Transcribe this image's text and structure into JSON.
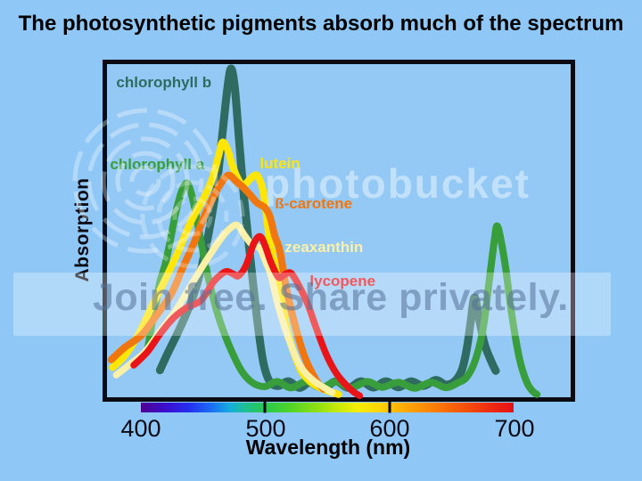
{
  "title": "The photosynthetic pigments absorb much of the spectrum",
  "watermark": {
    "brand": "photobucket",
    "tagline": "Join free. Share privately."
  },
  "colors": {
    "background": "#8FC7F7",
    "frame_border": "#0B0B14",
    "title_text": "#000000",
    "axis_text": "#0A0A14"
  },
  "chart_data": {
    "type": "line",
    "title": "The photosynthetic pigments absorb much of the spectrum",
    "xlabel": "Wavelength (nm)",
    "ylabel": "Absorption",
    "x_ticks": [
      400,
      500,
      600,
      700
    ],
    "x_tick_labels": [
      "400",
      "500",
      "600",
      "700"
    ],
    "xlim": [
      373,
      720
    ],
    "ylim": [
      0,
      1.05
    ],
    "grid": false,
    "legend_position": "inline curve labels",
    "series": [
      {
        "name": "chlorophyll b",
        "color": "#2F6B60",
        "label_anchor": [
          381,
          0.956
        ],
        "points": [
          [
            416,
            0.08
          ],
          [
            422,
            0.13
          ],
          [
            431,
            0.2
          ],
          [
            438,
            0.26
          ],
          [
            443,
            0.31
          ],
          [
            447,
            0.36
          ],
          [
            452,
            0.44
          ],
          [
            457,
            0.54
          ],
          [
            462,
            0.66
          ],
          [
            466,
            0.8
          ],
          [
            470,
            0.94
          ],
          [
            473,
            1.0
          ],
          [
            476,
            0.94
          ],
          [
            479,
            0.8
          ],
          [
            483,
            0.62
          ],
          [
            487,
            0.47
          ],
          [
            491,
            0.33
          ],
          [
            495,
            0.2
          ],
          [
            499,
            0.1
          ],
          [
            504,
            0.045
          ],
          [
            511,
            0.032
          ],
          [
            519,
            0.046
          ],
          [
            528,
            0.026
          ],
          [
            537,
            0.046
          ],
          [
            547,
            0.026
          ],
          [
            557,
            0.046
          ],
          [
            567,
            0.026
          ],
          [
            577,
            0.046
          ],
          [
            587,
            0.027
          ],
          [
            597,
            0.046
          ],
          [
            607,
            0.028
          ],
          [
            617,
            0.046
          ],
          [
            627,
            0.032
          ],
          [
            637,
            0.05
          ],
          [
            645,
            0.036
          ],
          [
            652,
            0.046
          ],
          [
            658,
            0.082
          ],
          [
            662,
            0.15
          ],
          [
            665,
            0.23
          ],
          [
            668,
            0.302
          ],
          [
            672,
            0.23
          ],
          [
            676,
            0.16
          ],
          [
            681,
            0.11
          ],
          [
            685,
            0.078
          ]
        ]
      },
      {
        "name": "chlorophyll a",
        "color": "#389E3C",
        "label_anchor": [
          376,
          0.707
        ],
        "points": [
          [
            406,
            0.14
          ],
          [
            409,
            0.21
          ],
          [
            413,
            0.29
          ],
          [
            416,
            0.35
          ],
          [
            420,
            0.4
          ],
          [
            424,
            0.47
          ],
          [
            428,
            0.55
          ],
          [
            432,
            0.61
          ],
          [
            435,
            0.64
          ],
          [
            438,
            0.65
          ],
          [
            441,
            0.62
          ],
          [
            444,
            0.57
          ],
          [
            448,
            0.49
          ],
          [
            452,
            0.41
          ],
          [
            458,
            0.31
          ],
          [
            464,
            0.23
          ],
          [
            472,
            0.15
          ],
          [
            481,
            0.08
          ],
          [
            490,
            0.042
          ],
          [
            500,
            0.03
          ],
          [
            510,
            0.045
          ],
          [
            521,
            0.026
          ],
          [
            533,
            0.045
          ],
          [
            545,
            0.026
          ],
          [
            557,
            0.045
          ],
          [
            569,
            0.026
          ],
          [
            582,
            0.045
          ],
          [
            594,
            0.028
          ],
          [
            607,
            0.043
          ],
          [
            620,
            0.025
          ],
          [
            633,
            0.043
          ],
          [
            645,
            0.027
          ],
          [
            655,
            0.042
          ],
          [
            662,
            0.06
          ],
          [
            669,
            0.115
          ],
          [
            675,
            0.21
          ],
          [
            680,
            0.36
          ],
          [
            684,
            0.48
          ],
          [
            686,
            0.52
          ],
          [
            689,
            0.48
          ],
          [
            693,
            0.39
          ],
          [
            698,
            0.245
          ],
          [
            704,
            0.115
          ],
          [
            710,
            0.042
          ],
          [
            715,
            0.014
          ],
          [
            718,
            0.006
          ]
        ]
      },
      {
        "name": "lutein",
        "color": "#FFE606",
        "label_anchor": [
          496,
          0.709
        ],
        "points": [
          [
            378,
            0.088
          ],
          [
            388,
            0.125
          ],
          [
            399,
            0.19
          ],
          [
            409,
            0.27
          ],
          [
            420,
            0.355
          ],
          [
            431,
            0.445
          ],
          [
            441,
            0.535
          ],
          [
            451,
            0.605
          ],
          [
            458,
            0.665
          ],
          [
            463,
            0.735
          ],
          [
            466,
            0.775
          ],
          [
            470,
            0.755
          ],
          [
            474,
            0.705
          ],
          [
            479,
            0.66
          ],
          [
            483,
            0.645
          ],
          [
            488,
            0.662
          ],
          [
            492,
            0.675
          ],
          [
            495,
            0.668
          ],
          [
            499,
            0.62
          ],
          [
            503,
            0.5
          ],
          [
            507,
            0.42
          ],
          [
            513,
            0.31
          ],
          [
            518,
            0.2
          ],
          [
            524,
            0.125
          ],
          [
            530,
            0.072
          ],
          [
            538,
            0.04
          ],
          [
            548,
            0.02
          ],
          [
            559,
            0.006
          ]
        ]
      },
      {
        "name": "ß-carotene",
        "color": "#F0770F",
        "label_anchor": [
          508,
          0.587
        ],
        "points": [
          [
            377,
            0.112
          ],
          [
            388,
            0.15
          ],
          [
            401,
            0.186
          ],
          [
            413,
            0.246
          ],
          [
            425,
            0.312
          ],
          [
            434,
            0.39
          ],
          [
            444,
            0.475
          ],
          [
            452,
            0.555
          ],
          [
            461,
            0.625
          ],
          [
            468,
            0.666
          ],
          [
            472,
            0.674
          ],
          [
            477,
            0.656
          ],
          [
            482,
            0.64
          ],
          [
            488,
            0.616
          ],
          [
            494,
            0.59
          ],
          [
            500,
            0.576
          ],
          [
            504,
            0.55
          ],
          [
            508,
            0.49
          ],
          [
            512,
            0.445
          ],
          [
            517,
            0.335
          ],
          [
            524,
            0.22
          ],
          [
            532,
            0.12
          ],
          [
            541,
            0.05
          ],
          [
            547,
            0.022
          ]
        ]
      },
      {
        "name": "zeaxanthin",
        "color": "#FAF0A6",
        "label_anchor": [
          516,
          0.454
        ],
        "points": [
          [
            381,
            0.065
          ],
          [
            391,
            0.095
          ],
          [
            404,
            0.136
          ],
          [
            416,
            0.198
          ],
          [
            429,
            0.264
          ],
          [
            441,
            0.34
          ],
          [
            454,
            0.42
          ],
          [
            465,
            0.482
          ],
          [
            472,
            0.512
          ],
          [
            478,
            0.522
          ],
          [
            484,
            0.49
          ],
          [
            490,
            0.462
          ],
          [
            496,
            0.452
          ],
          [
            501,
            0.408
          ],
          [
            505,
            0.368
          ],
          [
            511,
            0.272
          ],
          [
            519,
            0.177
          ],
          [
            528,
            0.095
          ],
          [
            539,
            0.048
          ],
          [
            554,
            0.012
          ]
        ]
      },
      {
        "name": "lycopene",
        "color": "#E81417",
        "label_anchor": [
          536,
          0.35
        ],
        "points": [
          [
            395,
            0.095
          ],
          [
            406,
            0.136
          ],
          [
            416,
            0.19
          ],
          [
            427,
            0.24
          ],
          [
            438,
            0.272
          ],
          [
            449,
            0.293
          ],
          [
            459,
            0.35
          ],
          [
            466,
            0.375
          ],
          [
            470,
            0.381
          ],
          [
            475,
            0.373
          ],
          [
            479,
            0.368
          ],
          [
            485,
            0.4
          ],
          [
            491,
            0.465
          ],
          [
            496,
            0.488
          ],
          [
            500,
            0.462
          ],
          [
            505,
            0.408
          ],
          [
            511,
            0.363
          ],
          [
            516,
            0.372
          ],
          [
            521,
            0.376
          ],
          [
            527,
            0.34
          ],
          [
            534,
            0.285
          ],
          [
            541,
            0.21
          ],
          [
            549,
            0.13
          ],
          [
            557,
            0.072
          ],
          [
            565,
            0.035
          ],
          [
            571,
            0.014
          ],
          [
            576,
            0.002
          ]
        ]
      }
    ],
    "spectrum_bar": {
      "tick_marks_nm": [
        500,
        600
      ],
      "stops": [
        {
          "pos": 0.0,
          "color": "#4E0290"
        },
        {
          "pos": 0.07,
          "color": "#3A10D0"
        },
        {
          "pos": 0.13,
          "color": "#2430F0"
        },
        {
          "pos": 0.19,
          "color": "#1B6EF5"
        },
        {
          "pos": 0.24,
          "color": "#14AEDC"
        },
        {
          "pos": 0.28,
          "color": "#1FBF93"
        },
        {
          "pos": 0.33,
          "color": "#27C84F"
        },
        {
          "pos": 0.4,
          "color": "#4FD428"
        },
        {
          "pos": 0.47,
          "color": "#8CE013"
        },
        {
          "pos": 0.53,
          "color": "#C8EA07"
        },
        {
          "pos": 0.58,
          "color": "#F3EE04"
        },
        {
          "pos": 0.64,
          "color": "#FDD404"
        },
        {
          "pos": 0.71,
          "color": "#FDA805"
        },
        {
          "pos": 0.79,
          "color": "#FB7D07"
        },
        {
          "pos": 0.87,
          "color": "#F5500B"
        },
        {
          "pos": 0.94,
          "color": "#EE2A11"
        },
        {
          "pos": 1.0,
          "color": "#E61015"
        }
      ]
    }
  }
}
